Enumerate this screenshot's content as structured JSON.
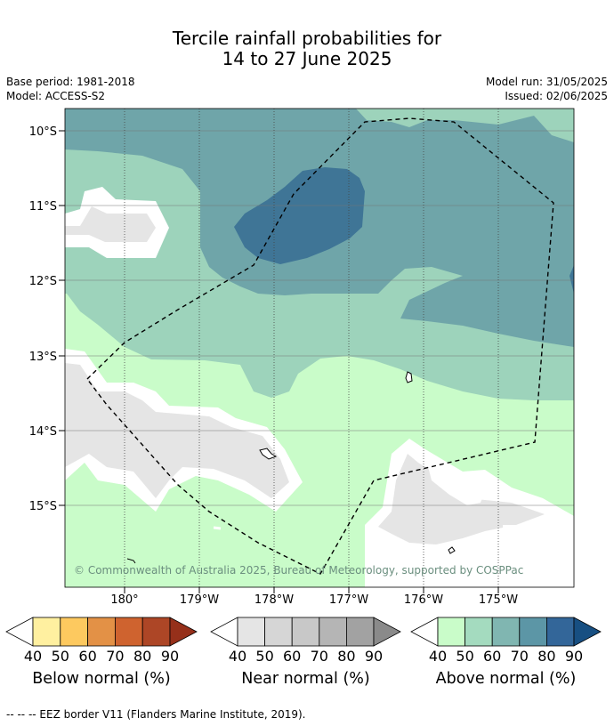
{
  "title": {
    "line1": "Tercile rainfall probabilities for",
    "line2": "14 to 27 June 2025"
  },
  "meta": {
    "base_period": "Base period: 1981-2018",
    "model": "Model: ACCESS-S2",
    "model_run": "Model run: 31/05/2025",
    "issued": "Issued: 02/06/2025"
  },
  "map": {
    "lat_labels": [
      "10°S",
      "11°S",
      "12°S",
      "13°S",
      "14°S",
      "15°S"
    ],
    "lon_labels": [
      "180°",
      "179°W",
      "178°W",
      "177°W",
      "176°W",
      "175°W"
    ],
    "copyright": "© Commonwealth of Australia 2025, Bureau of Meteorology, supported by COSPPac",
    "colors": {
      "above_40": "#c9fcc9",
      "above_50": "#9dd3bb",
      "above_60": "#6fa5a9",
      "above_70": "#3f7596",
      "near_gray": "#e5e5e5",
      "border": "#000000"
    }
  },
  "legends": [
    {
      "label": "Below normal (%)",
      "ticks": [
        "40",
        "50",
        "60",
        "70",
        "80",
        "90"
      ],
      "colors": [
        "#fff0a0",
        "#fdc95f",
        "#e39146",
        "#cf632f",
        "#ad4626",
        "#96301a"
      ]
    },
    {
      "label": "Near normal (%)",
      "ticks": [
        "40",
        "50",
        "60",
        "70",
        "80",
        "90"
      ],
      "colors": [
        "#e5e5e5",
        "#d6d6d6",
        "#c8c8c8",
        "#b5b5b5",
        "#a2a2a2",
        "#8a8a8a"
      ]
    },
    {
      "label": "Above normal (%)",
      "ticks": [
        "40",
        "50",
        "60",
        "70",
        "80",
        "90"
      ],
      "colors": [
        "#c9fcc9",
        "#a4dbbf",
        "#80b6b1",
        "#5c96a6",
        "#336699",
        "#174f82"
      ]
    }
  ],
  "footer": "--  --  -- EEZ border V11 (Flanders Marine Institute, 2019)."
}
